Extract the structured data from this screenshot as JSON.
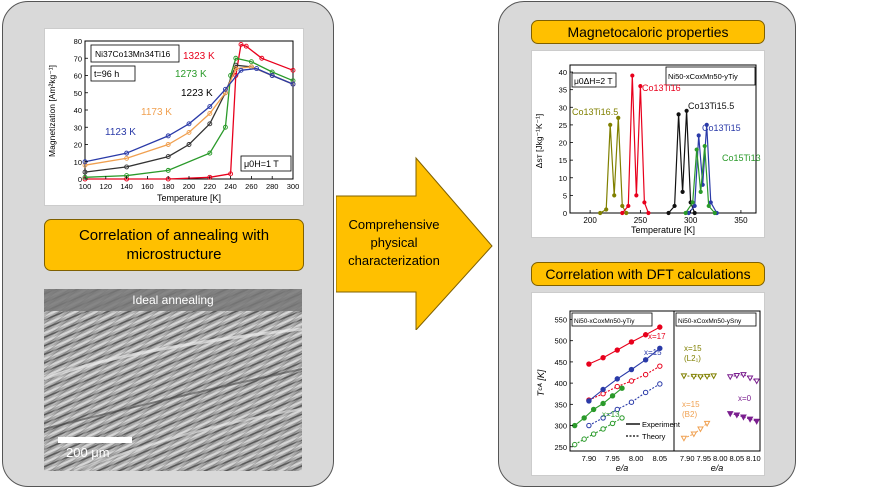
{
  "left_panel": {
    "chart": {
      "composition": "Ni37Co13Mn34Ti16",
      "time": "t=96 h",
      "field": "μ0H=1 T",
      "ylabel": "Magnetization [Am²kg⁻¹]",
      "xlabel": "Temperature [K]",
      "x_ticks": [
        "100",
        "120",
        "140",
        "160",
        "180",
        "200",
        "220",
        "240",
        "260",
        "280",
        "300"
      ],
      "y_ticks": [
        "0",
        "10",
        "20",
        "30",
        "40",
        "50",
        "60",
        "70",
        "80"
      ],
      "series_labels": [
        "1323 K",
        "1273 K",
        "1223 K",
        "1173 K",
        "1123 K"
      ]
    },
    "callout": "Correlation of annealing with microstructure",
    "micrograph": {
      "caption": "Ideal annealing",
      "scale": "200 μm"
    }
  },
  "arrow": {
    "text": "Comprehensive physical characterization"
  },
  "right_panel": {
    "title1": "Magnetocaloric properties",
    "mce_chart": {
      "field": "μ0ΔH=2 T",
      "composition": "Ni50-xCoxMn50-yTiy",
      "ylabel": "Δsᴛ [Jkg⁻¹K⁻¹]",
      "xlabel": "Temperature [K]",
      "x_ticks": [
        "200",
        "250",
        "300",
        "350"
      ],
      "y_ticks": [
        "0",
        "5",
        "10",
        "15",
        "20",
        "25",
        "30",
        "35",
        "40"
      ],
      "series_labels": [
        "Co13Ti16.5",
        "Co13Ti16",
        "Co13Ti15.5",
        "Co13Ti15",
        "Co15Ti13"
      ]
    },
    "title2": "Correlation with DFT calculations",
    "dft_chart": {
      "left_comp": "Ni50-xCoxMn50-yTiy",
      "right_comp": "Ni50-xCoxMn50-ySny",
      "ylabel": "Tᶜᴬ [K]",
      "xlabel": "e/a",
      "left_x_ticks": [
        "7.90",
        "7.95",
        "8.00",
        "8.05"
      ],
      "right_x_ticks": [
        "7.90",
        "7.95",
        "8.00",
        "8.05",
        "8.10"
      ],
      "y_ticks": [
        "250",
        "300",
        "350",
        "400",
        "450",
        "500",
        "550"
      ],
      "series_labels": [
        "x=17",
        "x=15",
        "x=13"
      ],
      "right_labels": [
        "x=15",
        "(L2₁)",
        "x=0",
        "x=15",
        "(B2)"
      ],
      "legend": [
        "Experiment",
        "Theory"
      ]
    }
  },
  "chart_data": [
    {
      "type": "line",
      "title": "Ni37Co13Mn34Ti16",
      "xlabel": "Temperature [K]",
      "ylabel": "Magnetization [Am²kg⁻¹]",
      "xlim": [
        100,
        300
      ],
      "ylim": [
        0,
        80
      ],
      "series": [
        {
          "name": "1323 K",
          "color": "#e8001c",
          "x": [
            100,
            140,
            180,
            220,
            240,
            245,
            250,
            255,
            270,
            300
          ],
          "y": [
            0,
            0,
            0,
            1,
            3,
            60,
            78,
            77,
            70,
            63
          ]
        },
        {
          "name": "1273 K",
          "color": "#2a9a2a",
          "x": [
            100,
            140,
            180,
            220,
            235,
            240,
            245,
            260,
            280,
            300
          ],
          "y": [
            1,
            2,
            5,
            15,
            30,
            60,
            70,
            68,
            62,
            57
          ]
        },
        {
          "name": "1223 K",
          "color": "#333333",
          "x": [
            100,
            140,
            180,
            200,
            220,
            235,
            245,
            260,
            280,
            300
          ],
          "y": [
            4,
            7,
            13,
            20,
            32,
            50,
            66,
            65,
            60,
            55
          ]
        },
        {
          "name": "1173 K",
          "color": "#f0a050",
          "x": [
            100,
            140,
            180,
            200,
            220,
            235,
            245,
            260,
            280,
            300
          ],
          "y": [
            8,
            12,
            20,
            27,
            38,
            50,
            64,
            65,
            60,
            55
          ]
        },
        {
          "name": "1123 K",
          "color": "#2a3aa8",
          "x": [
            100,
            140,
            180,
            200,
            220,
            235,
            250,
            265,
            280,
            300
          ],
          "y": [
            10,
            15,
            25,
            32,
            42,
            52,
            63,
            64,
            60,
            55
          ]
        }
      ]
    },
    {
      "type": "line",
      "title": "Ni50-xCoxMn50-yTiy",
      "xlabel": "Temperature [K]",
      "ylabel": "Δsᴛ [Jkg⁻¹K⁻¹]",
      "xlim": [
        180,
        365
      ],
      "ylim": [
        0,
        42
      ],
      "series": [
        {
          "name": "Co13Ti16.5",
          "color": "#808000",
          "x": [
            210,
            216,
            220,
            224,
            228,
            232,
            236
          ],
          "y": [
            0,
            1,
            25,
            5,
            27,
            2,
            0
          ]
        },
        {
          "name": "Co13Ti16",
          "color": "#e8001c",
          "x": [
            232,
            238,
            242,
            246,
            250,
            254,
            258
          ],
          "y": [
            0,
            2,
            39,
            5,
            36,
            3,
            0
          ]
        },
        {
          "name": "Co13Ti15.5",
          "color": "#111111",
          "x": [
            278,
            284,
            288,
            292,
            296,
            300,
            304
          ],
          "y": [
            0,
            2,
            28,
            6,
            29,
            3,
            0
          ]
        },
        {
          "name": "Co13Ti15",
          "color": "#2a3aa8",
          "x": [
            298,
            304,
            308,
            312,
            316,
            320,
            326
          ],
          "y": [
            0,
            2,
            22,
            8,
            25,
            3,
            0
          ]
        },
        {
          "name": "Co15Ti13",
          "color": "#2a9a2a",
          "x": [
            295,
            302,
            306,
            310,
            314,
            318,
            324
          ],
          "y": [
            0,
            3,
            18,
            6,
            19,
            2,
            0
          ]
        }
      ]
    },
    {
      "type": "scatter",
      "title": "Ni50-xCoxMn50-yTiy",
      "xlabel": "e/a",
      "ylabel": "Tᶜᴬ [K]",
      "xlim": [
        7.86,
        8.08
      ],
      "ylim": [
        240,
        570
      ],
      "series": [
        {
          "name": "x=17",
          "color": "#e8001c",
          "x": [
            7.9,
            7.93,
            7.96,
            7.99,
            8.02,
            8.05
          ],
          "y": [
            445,
            460,
            478,
            497,
            514,
            532
          ]
        },
        {
          "name": "x=17 theory",
          "color": "#e8001c",
          "x": [
            7.9,
            7.93,
            7.96,
            7.99,
            8.02,
            8.05
          ],
          "y": [
            360,
            375,
            392,
            405,
            420,
            440
          ]
        },
        {
          "name": "x=15",
          "color": "#2a3aa8",
          "x": [
            7.9,
            7.93,
            7.96,
            7.99,
            8.02,
            8.05
          ],
          "y": [
            358,
            385,
            410,
            432,
            455,
            482
          ]
        },
        {
          "name": "x=15 theory",
          "color": "#2a3aa8",
          "x": [
            7.9,
            7.93,
            7.96,
            7.99,
            8.02,
            8.05
          ],
          "y": [
            300,
            318,
            338,
            355,
            378,
            398
          ]
        },
        {
          "name": "x=13",
          "color": "#2a9a2a",
          "x": [
            7.87,
            7.89,
            7.91,
            7.93,
            7.95,
            7.97
          ],
          "y": [
            300,
            318,
            338,
            352,
            370,
            388
          ]
        },
        {
          "name": "x=13 theory",
          "color": "#2a9a2a",
          "x": [
            7.87,
            7.89,
            7.91,
            7.93,
            7.95,
            7.97
          ],
          "y": [
            255,
            268,
            280,
            292,
            305,
            318
          ]
        }
      ]
    },
    {
      "type": "scatter",
      "title": "Ni50-xCoxMn50-ySny",
      "xlabel": "e/a",
      "ylim": [
        240,
        570
      ],
      "xlim": [
        7.86,
        8.12
      ],
      "series": [
        {
          "name": "x=15 (L21)",
          "color": "#808000",
          "x": [
            7.89,
            7.92,
            7.94,
            7.96,
            7.98
          ],
          "y": [
            417,
            416,
            415,
            416,
            417
          ]
        },
        {
          "name": "x=15 (B2)",
          "color": "#f0a050",
          "x": [
            7.89,
            7.92,
            7.94,
            7.96
          ],
          "y": [
            270,
            280,
            292,
            305
          ]
        },
        {
          "name": "x=0",
          "color": "#7b1f8f",
          "x": [
            8.03,
            8.05,
            8.07,
            8.09,
            8.11
          ],
          "y": [
            415,
            418,
            420,
            412,
            405
          ]
        },
        {
          "name": "x=0 ",
          "color": "#7b1f8f",
          "x": [
            8.03,
            8.05,
            8.07,
            8.09,
            8.11
          ],
          "y": [
            328,
            325,
            320,
            315,
            310
          ]
        }
      ]
    }
  ]
}
